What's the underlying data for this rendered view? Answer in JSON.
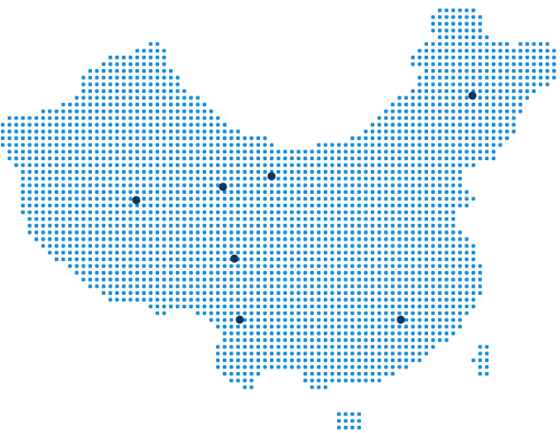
{
  "map": {
    "style": "dot-matrix",
    "region_shape": "china",
    "dot_color": "#1a8fd8",
    "marker_color": "#0d3562",
    "marker_icon": "location-dot-icon"
  }
}
